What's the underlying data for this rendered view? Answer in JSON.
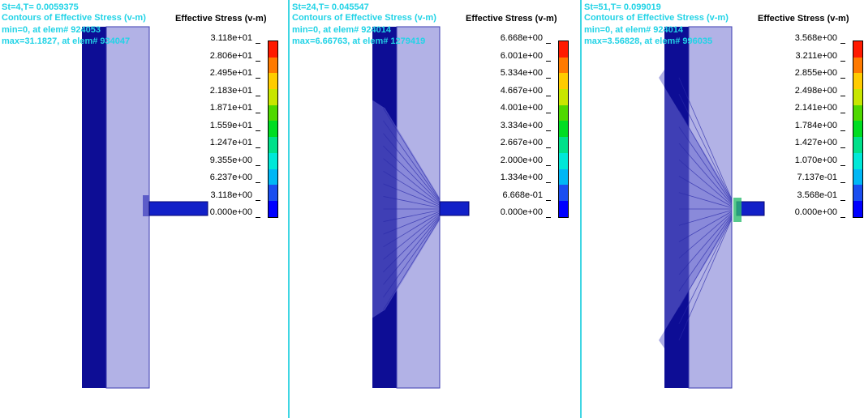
{
  "panels": [
    {
      "state": "St=4,T=   0.0059375",
      "contour_title": "Contours of Effective Stress (v-m)",
      "min_text": "min=0, at elem# 924053",
      "max_text": "max=31.1827, at elem# 934047",
      "legend_title": "Effective Stress (v-m)",
      "ticks": [
        "3.118e+01",
        "2.806e+01",
        "2.495e+01",
        "2.183e+01",
        "1.871e+01",
        "1.559e+01",
        "1.247e+01",
        "9.355e+00",
        "6.237e+00",
        "3.118e+00",
        "0.000e+00"
      ],
      "spread": 0.05
    },
    {
      "state": "St=24,T=   0.045547",
      "contour_title": "Contours of Effective Stress (v-m)",
      "min_text": "min=0, at elem# 924014",
      "max_text": "max=6.66763, at elem# 1279419",
      "legend_title": "Effective Stress (v-m)",
      "ticks": [
        "6.668e+00",
        "6.001e+00",
        "5.334e+00",
        "4.667e+00",
        "4.001e+00",
        "3.334e+00",
        "2.667e+00",
        "2.000e+00",
        "1.334e+00",
        "6.668e-01",
        "0.000e+00"
      ],
      "spread": 0.75
    },
    {
      "state": "St=51,T=   0.099019",
      "contour_title": "Contours of Effective Stress (v-m)",
      "min_text": "min=0, at elem# 924014",
      "max_text": "max=3.56828, at elem# 996035",
      "legend_title": "Effective Stress (v-m)",
      "ticks": [
        "3.568e+00",
        "3.211e+00",
        "2.855e+00",
        "2.498e+00",
        "2.141e+00",
        "1.784e+00",
        "1.427e+00",
        "1.070e+00",
        "7.137e-01",
        "3.568e-01",
        "0.000e+00"
      ],
      "spread": 1.0
    }
  ],
  "colors": {
    "header_text": "#22d3e6",
    "separator": "#3fd6e3",
    "colorbar_top_to_bottom": [
      "#ff1a00",
      "#ff7a00",
      "#ffcc00",
      "#c8e600",
      "#4fd800",
      "#00dd22",
      "#00e08a",
      "#00e8d8",
      "#00b7f5",
      "#1a4ef0",
      "#0000ff"
    ],
    "plate_dark": "#0d0d95",
    "plate_light": "#b2b2e6"
  }
}
